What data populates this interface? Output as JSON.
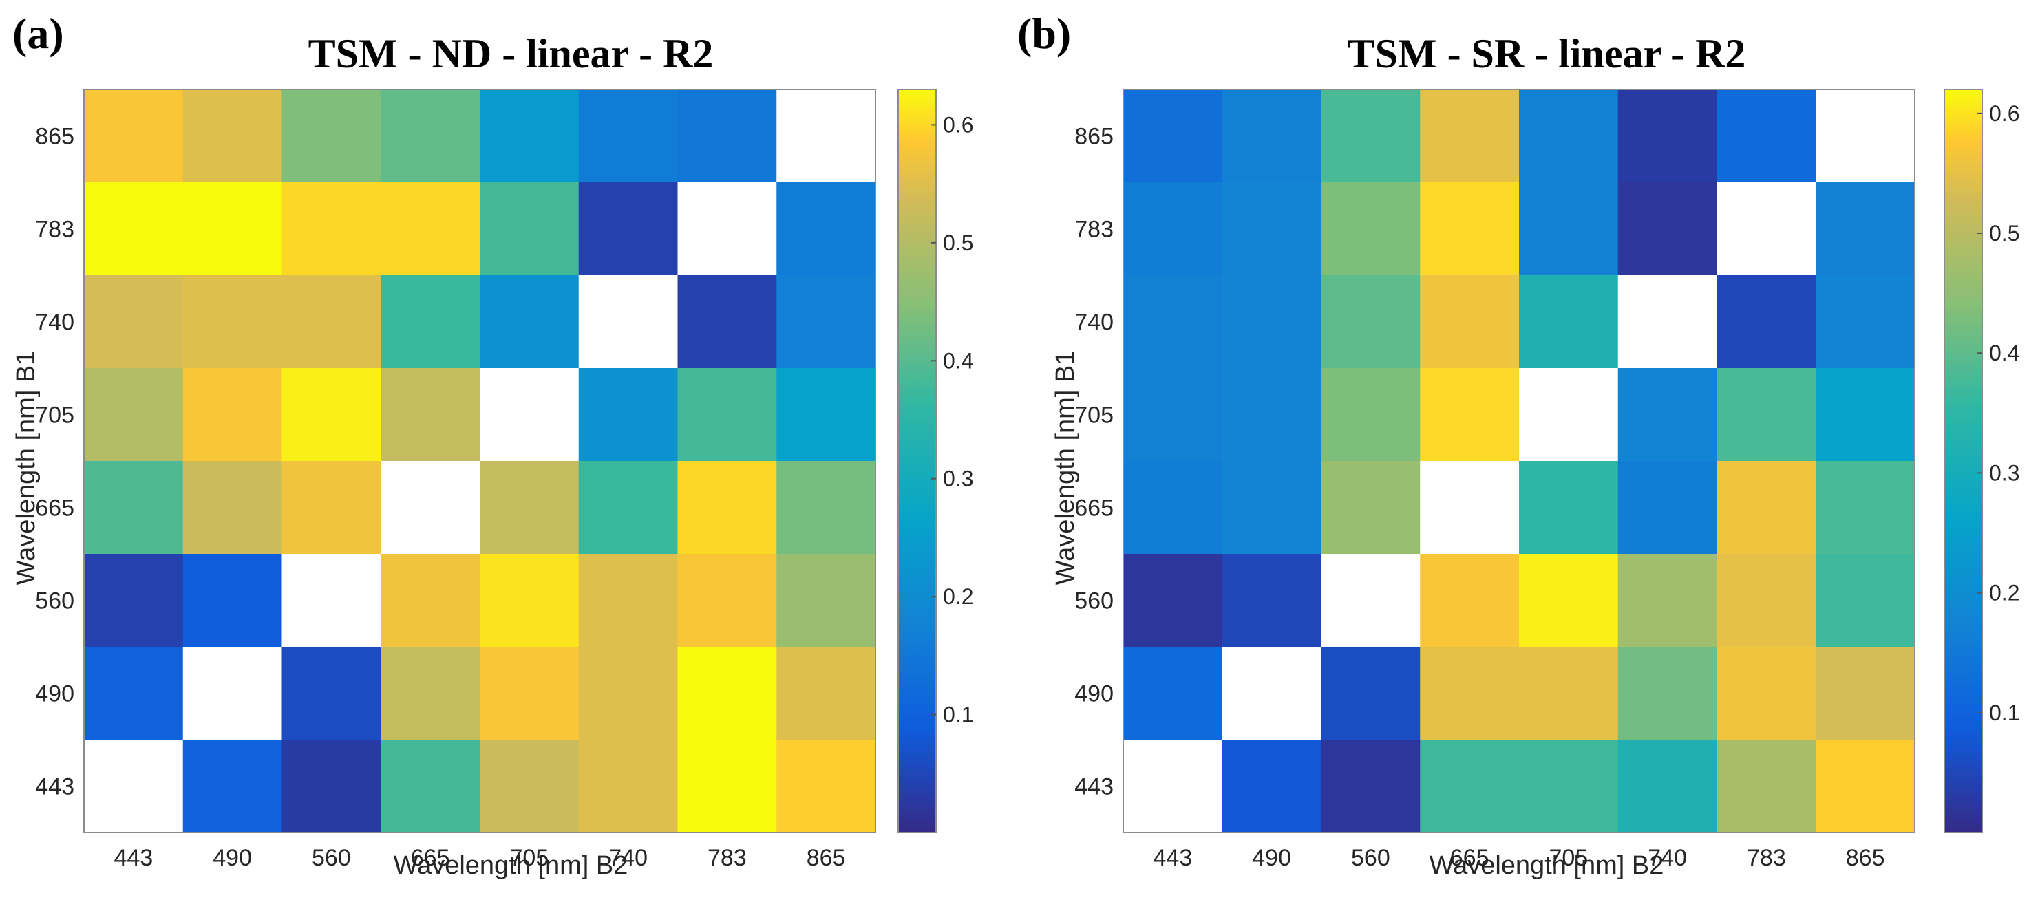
{
  "chart_data": [
    {
      "type": "heatmap",
      "panel_label": "(a)",
      "title": "TSM - ND - linear - R2",
      "xlabel": "Wavelength [nm] B2",
      "ylabel": "Wavelength [nm] B1",
      "x_categories": [
        "443",
        "490",
        "560",
        "665",
        "705",
        "740",
        "783",
        "865"
      ],
      "y_categories": [
        "865",
        "783",
        "740",
        "705",
        "665",
        "560",
        "490",
        "443"
      ],
      "values": [
        [
          0.58,
          0.55,
          0.44,
          0.41,
          0.24,
          0.16,
          0.15,
          null
        ],
        [
          0.63,
          0.63,
          0.6,
          0.6,
          0.38,
          0.04,
          null,
          0.16
        ],
        [
          0.54,
          0.55,
          0.55,
          0.37,
          0.22,
          null,
          0.04,
          0.17
        ],
        [
          0.5,
          0.58,
          0.62,
          0.52,
          null,
          0.22,
          0.38,
          0.26
        ],
        [
          0.39,
          0.53,
          0.57,
          null,
          0.52,
          0.37,
          0.6,
          0.43
        ],
        [
          0.04,
          0.09,
          null,
          0.57,
          0.61,
          0.55,
          0.58,
          0.47
        ],
        [
          0.1,
          null,
          0.06,
          0.52,
          0.58,
          0.55,
          0.63,
          0.55
        ],
        [
          null,
          0.1,
          0.03,
          0.38,
          0.53,
          0.55,
          0.63,
          0.59
        ]
      ],
      "colorbar": {
        "min": 0.0,
        "max": 0.63,
        "ticks": [
          "0.1",
          "0.2",
          "0.3",
          "0.4",
          "0.5",
          "0.6"
        ],
        "tick_values": [
          0.1,
          0.2,
          0.3,
          0.4,
          0.5,
          0.6
        ]
      }
    },
    {
      "type": "heatmap",
      "panel_label": "(b)",
      "title": "TSM - SR - linear - R2",
      "xlabel": "Wavelength [nm] B2",
      "ylabel": "Wavelength [nm] B1",
      "x_categories": [
        "443",
        "490",
        "560",
        "665",
        "705",
        "740",
        "783",
        "865"
      ],
      "y_categories": [
        "865",
        "783",
        "740",
        "705",
        "665",
        "560",
        "490",
        "443"
      ],
      "values": [
        [
          0.13,
          0.17,
          0.38,
          0.55,
          0.17,
          0.03,
          0.12,
          null
        ],
        [
          0.16,
          0.18,
          0.43,
          0.59,
          0.17,
          0.02,
          null,
          0.17
        ],
        [
          0.17,
          0.18,
          0.4,
          0.56,
          0.32,
          null,
          0.05,
          0.18
        ],
        [
          0.17,
          0.18,
          0.43,
          0.59,
          null,
          0.18,
          0.38,
          0.26
        ],
        [
          0.16,
          0.18,
          0.46,
          null,
          0.35,
          0.16,
          0.56,
          0.38
        ],
        [
          0.02,
          0.05,
          null,
          0.57,
          0.61,
          0.47,
          0.55,
          0.37
        ],
        [
          0.12,
          null,
          0.06,
          0.55,
          0.55,
          0.42,
          0.56,
          0.53
        ],
        [
          null,
          0.08,
          0.02,
          0.37,
          0.37,
          0.32,
          0.48,
          0.58
        ]
      ],
      "colorbar": {
        "min": 0.0,
        "max": 0.62,
        "ticks": [
          "0.1",
          "0.2",
          "0.3",
          "0.4",
          "0.5",
          "0.6"
        ],
        "tick_values": [
          0.1,
          0.2,
          0.3,
          0.4,
          0.5,
          0.6
        ]
      }
    }
  ]
}
